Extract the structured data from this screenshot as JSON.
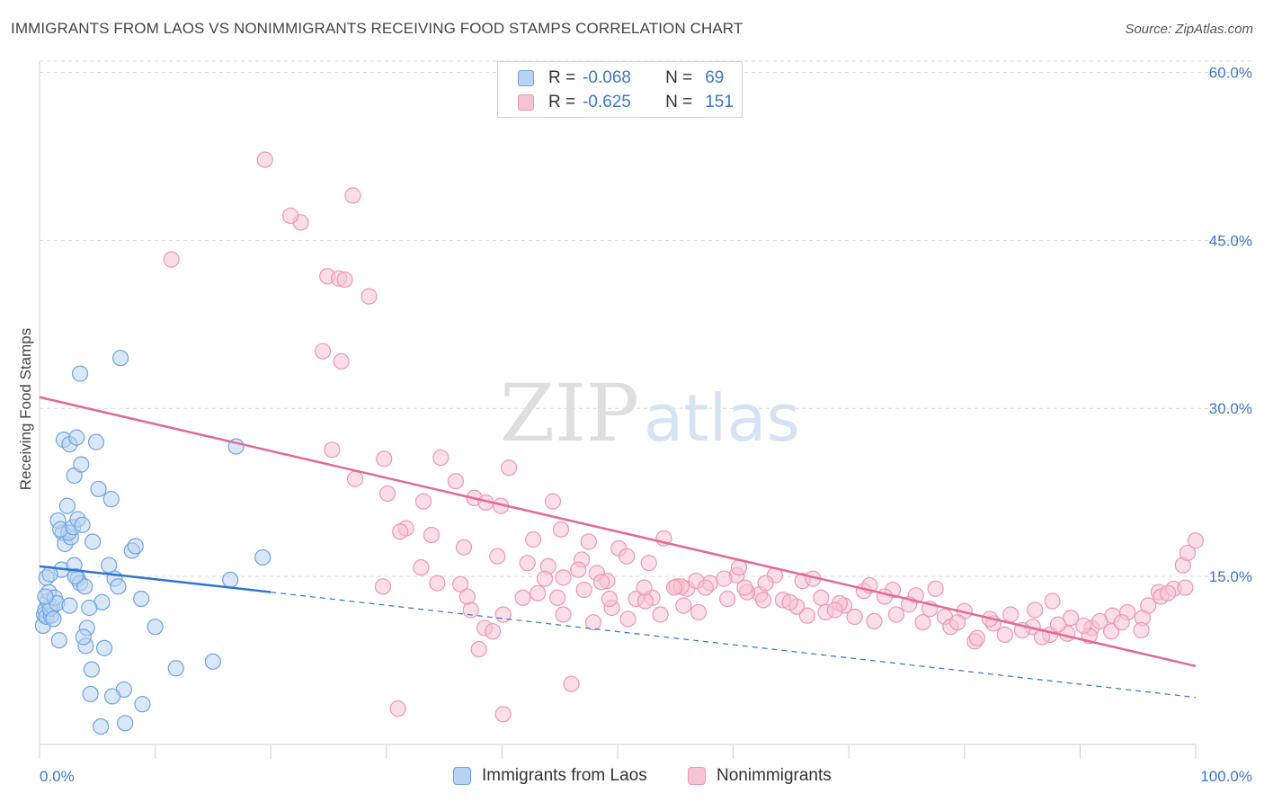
{
  "header": {
    "title": "IMMIGRANTS FROM LAOS VS NONIMMIGRANTS RECEIVING FOOD STAMPS CORRELATION CHART",
    "source": "Source: ZipAtlas.com"
  },
  "watermark": {
    "zip": "ZIP",
    "atlas": "atlas"
  },
  "legend": {
    "rows": [
      {
        "r_label": "R =",
        "r_value": "-0.068",
        "n_label": "N =",
        "n_value": "69"
      },
      {
        "r_label": "R =",
        "r_value": "-0.625",
        "n_label": "N =",
        "n_value": "151"
      }
    ]
  },
  "colors": {
    "blue_fill": "#b9d3f3",
    "blue_stroke": "#6fa3e0",
    "blue_line": "#2f74cf",
    "pink_fill": "#f7c2d3",
    "pink_stroke": "#ee97b3",
    "pink_line": "#e26a93",
    "tick_text": "#3c78c8",
    "grid": "#d9d9d9"
  },
  "chart_data": {
    "type": "scatter",
    "title": "IMMIGRANTS FROM LAOS VS NONIMMIGRANTS RECEIVING FOOD STAMPS CORRELATION CHART",
    "xlabel": "",
    "ylabel": "Receiving Food Stamps",
    "xlim": [
      0,
      100
    ],
    "ylim": [
      0,
      61
    ],
    "x_tick_labels": [
      "0.0%",
      "100.0%"
    ],
    "y_ticks": [
      15,
      30,
      45,
      60
    ],
    "y_tick_labels": [
      "15.0%",
      "30.0%",
      "45.0%",
      "60.0%"
    ],
    "series": [
      {
        "name": "Immigrants from Laos",
        "R": -0.068,
        "N": 69,
        "trend": {
          "x0": 0,
          "y0": 15.9,
          "x1": 20,
          "y1": 13.6,
          "dash_x1": 100,
          "dash_y1": 4.2
        },
        "points": [
          [
            0.3,
            10.6
          ],
          [
            0.4,
            11.6
          ],
          [
            0.5,
            12.0
          ],
          [
            0.6,
            11.4
          ],
          [
            0.7,
            12.8
          ],
          [
            0.8,
            13.6
          ],
          [
            0.6,
            14.9
          ],
          [
            1.0,
            11.5
          ],
          [
            1.1,
            12.3
          ],
          [
            0.9,
            12.1
          ],
          [
            1.3,
            13.1
          ],
          [
            1.5,
            12.6
          ],
          [
            1.7,
            9.3
          ],
          [
            1.9,
            15.6
          ],
          [
            2.0,
            18.9
          ],
          [
            2.2,
            17.9
          ],
          [
            2.4,
            21.3
          ],
          [
            2.1,
            27.2
          ],
          [
            2.6,
            26.8
          ],
          [
            3.0,
            24.0
          ],
          [
            3.2,
            27.4
          ],
          [
            3.6,
            25.0
          ],
          [
            3.3,
            14.8
          ],
          [
            3.5,
            14.4
          ],
          [
            3.0,
            16.0
          ],
          [
            2.7,
            18.5
          ],
          [
            2.5,
            18.9
          ],
          [
            3.9,
            14.1
          ],
          [
            4.1,
            10.4
          ],
          [
            4.5,
            6.7
          ],
          [
            4.4,
            4.5
          ],
          [
            4.9,
            27.0
          ],
          [
            5.1,
            22.8
          ],
          [
            5.4,
            12.7
          ],
          [
            5.6,
            8.6
          ],
          [
            6.0,
            16.0
          ],
          [
            6.2,
            21.9
          ],
          [
            6.5,
            14.8
          ],
          [
            6.8,
            14.1
          ],
          [
            7.0,
            34.5
          ],
          [
            7.3,
            4.9
          ],
          [
            7.4,
            1.9
          ],
          [
            8.0,
            17.3
          ],
          [
            8.3,
            17.7
          ],
          [
            8.9,
            3.6
          ],
          [
            8.8,
            13.0
          ],
          [
            10.0,
            10.5
          ],
          [
            11.8,
            6.8
          ],
          [
            15.0,
            7.4
          ],
          [
            16.5,
            14.7
          ],
          [
            17.0,
            26.6
          ],
          [
            19.3,
            16.7
          ],
          [
            5.3,
            1.6
          ],
          [
            6.3,
            4.3
          ],
          [
            3.5,
            33.1
          ],
          [
            1.6,
            20.0
          ],
          [
            1.8,
            19.2
          ],
          [
            2.9,
            19.4
          ],
          [
            3.1,
            15.0
          ],
          [
            3.3,
            20.1
          ],
          [
            3.7,
            19.6
          ],
          [
            4.0,
            8.8
          ],
          [
            4.6,
            18.1
          ],
          [
            2.6,
            12.4
          ],
          [
            1.2,
            11.2
          ],
          [
            0.9,
            15.2
          ],
          [
            0.5,
            13.2
          ],
          [
            3.8,
            9.6
          ],
          [
            4.3,
            12.2
          ]
        ]
      },
      {
        "name": "Nonimmigrants",
        "R": -0.625,
        "N": 151,
        "trend": {
          "x0": 0,
          "y0": 31.0,
          "x1": 100,
          "y1": 7.0
        },
        "points": [
          [
            19.5,
            52.2
          ],
          [
            27.1,
            49.0
          ],
          [
            22.6,
            46.6
          ],
          [
            21.7,
            47.2
          ],
          [
            11.4,
            43.3
          ],
          [
            24.9,
            41.8
          ],
          [
            25.9,
            41.6
          ],
          [
            26.4,
            41.5
          ],
          [
            28.5,
            40.0
          ],
          [
            24.5,
            35.1
          ],
          [
            26.1,
            34.2
          ],
          [
            25.3,
            26.3
          ],
          [
            27.3,
            23.7
          ],
          [
            29.8,
            25.5
          ],
          [
            30.1,
            22.4
          ],
          [
            36.0,
            23.5
          ],
          [
            34.7,
            25.6
          ],
          [
            37.6,
            22.0
          ],
          [
            38.6,
            21.6
          ],
          [
            40.6,
            24.7
          ],
          [
            39.9,
            21.3
          ],
          [
            33.2,
            21.7
          ],
          [
            44.4,
            21.7
          ],
          [
            31.7,
            19.3
          ],
          [
            33.9,
            18.7
          ],
          [
            36.7,
            17.6
          ],
          [
            39.6,
            16.8
          ],
          [
            42.7,
            18.3
          ],
          [
            45.1,
            19.2
          ],
          [
            47.5,
            18.1
          ],
          [
            50.1,
            17.5
          ],
          [
            54.0,
            18.4
          ],
          [
            33.0,
            15.8
          ],
          [
            36.4,
            14.3
          ],
          [
            44.0,
            15.9
          ],
          [
            45.3,
            14.9
          ],
          [
            46.9,
            16.5
          ],
          [
            48.2,
            15.3
          ],
          [
            49.1,
            14.6
          ],
          [
            50.8,
            16.8
          ],
          [
            52.7,
            16.2
          ],
          [
            53.0,
            13.1
          ],
          [
            55.1,
            14.1
          ],
          [
            56.0,
            13.9
          ],
          [
            58.0,
            14.4
          ],
          [
            59.5,
            13.0
          ],
          [
            60.3,
            15.1
          ],
          [
            62.3,
            13.4
          ],
          [
            64.3,
            12.9
          ],
          [
            66.0,
            14.6
          ],
          [
            67.6,
            13.1
          ],
          [
            69.6,
            12.4
          ],
          [
            71.3,
            13.7
          ],
          [
            73.8,
            13.8
          ],
          [
            75.8,
            13.3
          ],
          [
            77.0,
            12.1
          ],
          [
            78.3,
            11.4
          ],
          [
            80.0,
            11.9
          ],
          [
            82.5,
            10.8
          ],
          [
            84.0,
            11.6
          ],
          [
            85.9,
            10.5
          ],
          [
            87.4,
            9.8
          ],
          [
            89.2,
            11.3
          ],
          [
            91.0,
            10.4
          ],
          [
            92.7,
            10.1
          ],
          [
            94.1,
            11.8
          ],
          [
            95.4,
            11.3
          ],
          [
            96.8,
            13.6
          ],
          [
            98.1,
            13.9
          ],
          [
            98.9,
            16.0
          ],
          [
            99.3,
            17.1
          ],
          [
            100.0,
            18.2
          ],
          [
            29.7,
            14.1
          ],
          [
            31.2,
            19.0
          ],
          [
            37.3,
            12.0
          ],
          [
            38.5,
            10.4
          ],
          [
            41.8,
            13.1
          ],
          [
            43.1,
            13.5
          ],
          [
            45.3,
            11.6
          ],
          [
            47.9,
            10.9
          ],
          [
            49.5,
            12.2
          ],
          [
            51.6,
            13.0
          ],
          [
            53.7,
            11.6
          ],
          [
            55.7,
            12.4
          ],
          [
            57.0,
            11.8
          ],
          [
            60.5,
            15.8
          ],
          [
            62.6,
            12.9
          ],
          [
            63.6,
            15.1
          ],
          [
            65.5,
            12.3
          ],
          [
            68.0,
            11.8
          ],
          [
            70.5,
            11.4
          ],
          [
            72.2,
            11.0
          ],
          [
            74.1,
            11.6
          ],
          [
            76.4,
            10.9
          ],
          [
            78.8,
            10.5
          ],
          [
            80.9,
            9.2
          ],
          [
            83.5,
            9.8
          ],
          [
            85.0,
            10.2
          ],
          [
            86.7,
            9.6
          ],
          [
            88.9,
            9.9
          ],
          [
            90.8,
            9.7
          ],
          [
            92.8,
            11.5
          ],
          [
            95.3,
            10.2
          ],
          [
            97.0,
            13.2
          ],
          [
            91.7,
            11.0
          ],
          [
            87.6,
            12.8
          ],
          [
            81.1,
            9.5
          ],
          [
            77.5,
            13.9
          ],
          [
            73.1,
            13.2
          ],
          [
            69.2,
            12.6
          ],
          [
            66.4,
            11.5
          ],
          [
            62.8,
            14.4
          ],
          [
            59.2,
            14.8
          ],
          [
            55.5,
            14.1
          ],
          [
            52.4,
            12.8
          ],
          [
            49.3,
            13.0
          ],
          [
            46.6,
            15.6
          ],
          [
            43.7,
            14.8
          ],
          [
            40.1,
            11.6
          ],
          [
            37.0,
            13.2
          ],
          [
            34.4,
            14.4
          ],
          [
            42.2,
            16.2
          ],
          [
            47.1,
            13.8
          ],
          [
            50.9,
            11.2
          ],
          [
            56.8,
            14.6
          ],
          [
            61.2,
            13.6
          ],
          [
            64.9,
            12.7
          ],
          [
            68.8,
            12.0
          ],
          [
            71.8,
            14.2
          ],
          [
            75.2,
            12.5
          ],
          [
            79.4,
            10.9
          ],
          [
            82.2,
            11.2
          ],
          [
            86.1,
            12.0
          ],
          [
            88.1,
            10.7
          ],
          [
            90.3,
            10.6
          ],
          [
            93.6,
            10.9
          ],
          [
            95.9,
            12.4
          ],
          [
            97.6,
            13.5
          ],
          [
            99.1,
            14.0
          ],
          [
            31.0,
            3.2
          ],
          [
            40.1,
            2.7
          ],
          [
            38.0,
            8.5
          ],
          [
            46.0,
            5.4
          ],
          [
            39.2,
            10.1
          ],
          [
            44.8,
            13.1
          ],
          [
            48.6,
            14.5
          ],
          [
            52.3,
            14.0
          ],
          [
            57.6,
            14.0
          ],
          [
            61.0,
            14.0
          ],
          [
            66.9,
            14.8
          ],
          [
            54.9,
            14.0
          ]
        ]
      }
    ]
  },
  "bottom_legend": {
    "items": [
      {
        "label": "Immigrants from Laos"
      },
      {
        "label": "Nonimmigrants"
      }
    ]
  }
}
